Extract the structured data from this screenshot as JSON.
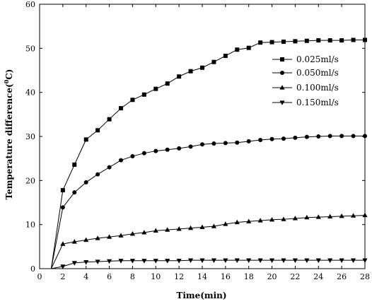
{
  "chart_data": {
    "type": "line",
    "xlabel": "Time(min)",
    "ylabel_main": "Temperature difference(",
    "ylabel_sup": "0",
    "ylabel_end": "C)",
    "xlim": [
      0,
      28
    ],
    "ylim": [
      0,
      60
    ],
    "xticks": [
      0,
      2,
      4,
      6,
      8,
      10,
      12,
      14,
      16,
      18,
      20,
      22,
      24,
      26,
      28
    ],
    "yticks": [
      0,
      10,
      20,
      30,
      40,
      50,
      60
    ],
    "grid": false,
    "legend_position": "upper-right",
    "series": [
      {
        "name": "0.025ml/s",
        "marker": "square",
        "points": [
          [
            0,
            0
          ],
          [
            1,
            0
          ],
          [
            2,
            17.8
          ],
          [
            3,
            23.6
          ],
          [
            4,
            29.3
          ],
          [
            5,
            31.4
          ],
          [
            6,
            33.9
          ],
          [
            7,
            36.4
          ],
          [
            8,
            38.3
          ],
          [
            9,
            39.5
          ],
          [
            10,
            40.8
          ],
          [
            11,
            42.0
          ],
          [
            12,
            43.6
          ],
          [
            13,
            44.8
          ],
          [
            14,
            45.6
          ],
          [
            15,
            46.9
          ],
          [
            16,
            48.3
          ],
          [
            17,
            49.7
          ],
          [
            18,
            50.1
          ],
          [
            19,
            51.3
          ],
          [
            20,
            51.4
          ],
          [
            21,
            51.5
          ],
          [
            22,
            51.6
          ],
          [
            23,
            51.7
          ],
          [
            24,
            51.8
          ],
          [
            25,
            51.8
          ],
          [
            26,
            51.8
          ],
          [
            27,
            51.9
          ],
          [
            28,
            51.9
          ]
        ]
      },
      {
        "name": "0.050ml/s",
        "marker": "circle",
        "points": [
          [
            0,
            0
          ],
          [
            1,
            0
          ],
          [
            2,
            13.9
          ],
          [
            3,
            17.3
          ],
          [
            4,
            19.6
          ],
          [
            5,
            21.4
          ],
          [
            6,
            23.0
          ],
          [
            7,
            24.6
          ],
          [
            8,
            25.5
          ],
          [
            9,
            26.2
          ],
          [
            10,
            26.7
          ],
          [
            11,
            27.0
          ],
          [
            12,
            27.3
          ],
          [
            13,
            27.7
          ],
          [
            14,
            28.2
          ],
          [
            15,
            28.4
          ],
          [
            16,
            28.5
          ],
          [
            17,
            28.6
          ],
          [
            18,
            28.9
          ],
          [
            19,
            29.2
          ],
          [
            20,
            29.4
          ],
          [
            21,
            29.5
          ],
          [
            22,
            29.7
          ],
          [
            23,
            29.9
          ],
          [
            24,
            30.0
          ],
          [
            25,
            30.1
          ],
          [
            26,
            30.1
          ],
          [
            27,
            30.1
          ],
          [
            28,
            30.1
          ]
        ]
      },
      {
        "name": "0.100ml/s",
        "marker": "triangle-up",
        "points": [
          [
            0,
            0
          ],
          [
            1,
            0
          ],
          [
            2,
            5.6
          ],
          [
            3,
            6.1
          ],
          [
            4,
            6.5
          ],
          [
            5,
            6.9
          ],
          [
            6,
            7.2
          ],
          [
            7,
            7.5
          ],
          [
            8,
            7.9
          ],
          [
            9,
            8.2
          ],
          [
            10,
            8.6
          ],
          [
            11,
            8.8
          ],
          [
            12,
            9.0
          ],
          [
            13,
            9.2
          ],
          [
            14,
            9.4
          ],
          [
            15,
            9.6
          ],
          [
            16,
            10.1
          ],
          [
            17,
            10.5
          ],
          [
            18,
            10.7
          ],
          [
            19,
            10.9
          ],
          [
            20,
            11.1
          ],
          [
            21,
            11.2
          ],
          [
            22,
            11.4
          ],
          [
            23,
            11.6
          ],
          [
            24,
            11.7
          ],
          [
            25,
            11.8
          ],
          [
            26,
            11.9
          ],
          [
            27,
            12.0
          ],
          [
            28,
            12.1
          ]
        ]
      },
      {
        "name": "0.150ml/s",
        "marker": "triangle-down",
        "points": [
          [
            0,
            0
          ],
          [
            1,
            0
          ],
          [
            2,
            0.5
          ],
          [
            3,
            1.3
          ],
          [
            4,
            1.5
          ],
          [
            5,
            1.6
          ],
          [
            6,
            1.7
          ],
          [
            7,
            1.8
          ],
          [
            8,
            1.8
          ],
          [
            9,
            1.8
          ],
          [
            10,
            1.8
          ],
          [
            11,
            1.8
          ],
          [
            12,
            1.8
          ],
          [
            13,
            1.9
          ],
          [
            14,
            1.9
          ],
          [
            15,
            1.9
          ],
          [
            16,
            1.9
          ],
          [
            17,
            1.9
          ],
          [
            18,
            1.9
          ],
          [
            19,
            1.9
          ],
          [
            20,
            1.9
          ],
          [
            21,
            1.9
          ],
          [
            22,
            1.9
          ],
          [
            23,
            1.9
          ],
          [
            24,
            1.9
          ],
          [
            25,
            1.9
          ],
          [
            26,
            1.9
          ],
          [
            27,
            1.9
          ],
          [
            28,
            1.9
          ]
        ]
      }
    ]
  }
}
